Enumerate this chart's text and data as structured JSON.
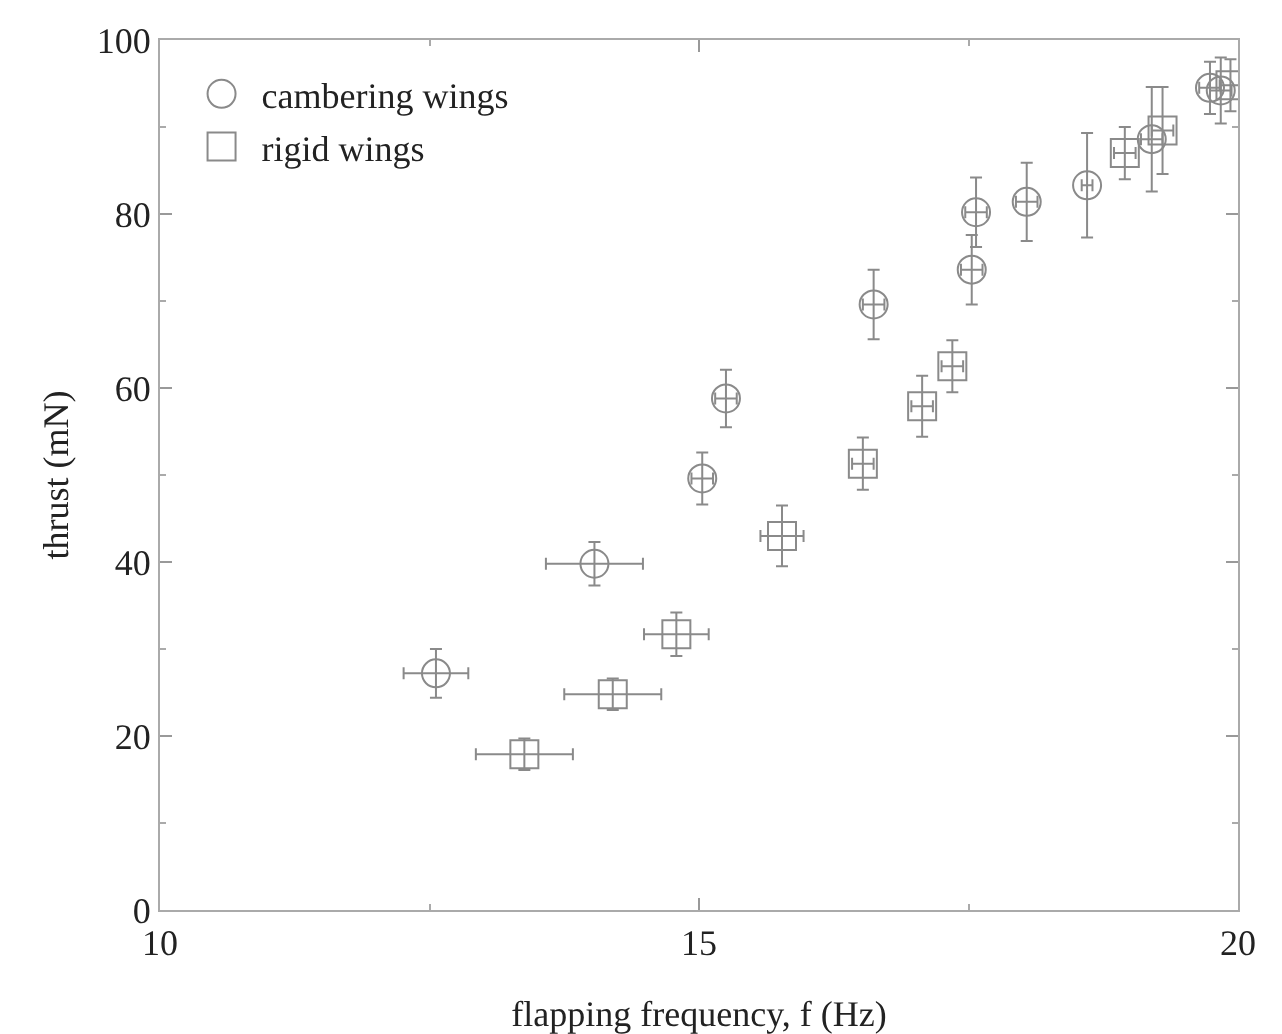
{
  "chart_data": {
    "type": "scatter",
    "xlabel": "flapping frequency, f (Hz)",
    "ylabel": "thrust (mN)",
    "xlim": [
      10,
      20
    ],
    "xticks": [
      10,
      15,
      20
    ],
    "ylim": [
      0,
      100
    ],
    "yticks": [
      0,
      20,
      40,
      60,
      80,
      100
    ],
    "grid": false,
    "legend": "top left",
    "series": [
      {
        "name": "cambering wings",
        "color": "#8a8a8a",
        "marker": "circle",
        "x": [
          12.56,
          14.03,
          15.03,
          15.25,
          16.62,
          17.53,
          17.57,
          18.04,
          18.6,
          19.2,
          19.74,
          19.84
        ],
        "values": [
          27.2,
          39.8,
          49.6,
          58.8,
          69.6,
          73.6,
          80.2,
          81.4,
          83.3,
          88.6,
          94.5,
          94.2
        ],
        "errors": [
          2.8,
          2.5,
          3,
          3.3,
          4,
          4,
          4,
          4.5,
          6,
          6,
          3,
          3.8
        ],
        "xerrors": [
          0.3,
          0.45,
          0.1,
          0.1,
          0.1,
          0.1,
          0.1,
          0.1,
          0.05,
          0.1,
          0.1,
          0.1
        ]
      },
      {
        "name": "rigid wings",
        "color": "#8a8a8a",
        "marker": "square",
        "x": [
          13.38,
          14.2,
          14.79,
          15.77,
          16.52,
          17.07,
          17.35,
          18.95,
          19.3,
          19.93
        ],
        "values": [
          17.9,
          24.8,
          31.7,
          43.0,
          51.3,
          57.9,
          62.5,
          87.0,
          89.6,
          94.8
        ],
        "errors": [
          1.8,
          1.8,
          2.5,
          3.5,
          3,
          3.5,
          3,
          3,
          5,
          3
        ],
        "xerrors": [
          0.45,
          0.45,
          0.3,
          0.2,
          0.1,
          0.1,
          0.1,
          0.1,
          0.1,
          0.1
        ]
      }
    ]
  }
}
